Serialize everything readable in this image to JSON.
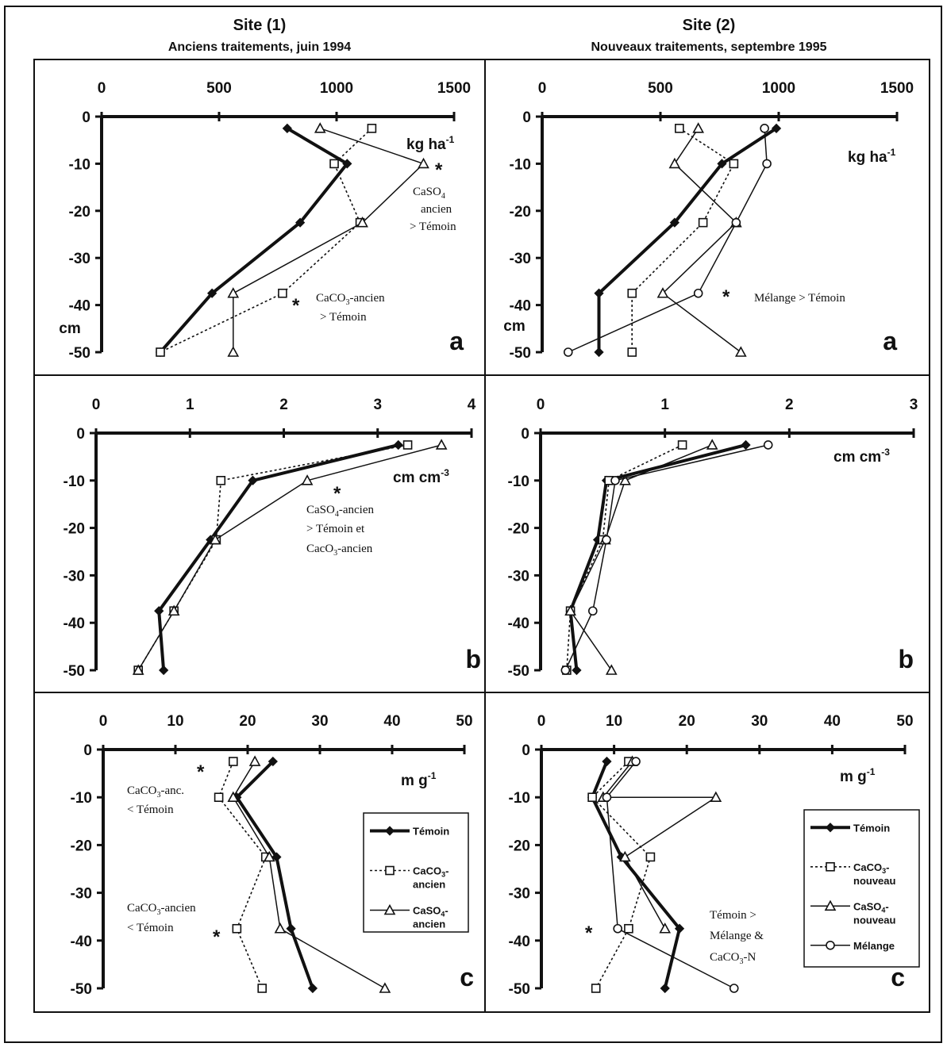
{
  "header": {
    "site1_title": "Site (1)",
    "site1_subtitle": "Anciens traitements, juin 1994",
    "site2_title": "Site (2)",
    "site2_subtitle": "Nouveaux traitements, septembre 1995"
  },
  "colors": {
    "ink": "#111111",
    "background": "#ffffff"
  },
  "chart_data": [
    {
      "id": "s1a",
      "type": "line",
      "panel_letter": "a",
      "unit": "kg ha-1",
      "ylabel": "cm",
      "xlim": [
        0,
        1500
      ],
      "xticks": [
        0,
        500,
        1000,
        1500
      ],
      "ylim": [
        -50,
        0
      ],
      "yticks": [
        0,
        -10,
        -20,
        -30,
        -40,
        -50
      ],
      "legend": null,
      "series": [
        {
          "name": "Témoin",
          "marker": "diamond",
          "style": "thick",
          "points": [
            [
              790,
              -2.5
            ],
            [
              1045,
              -10
            ],
            [
              845,
              -22.5
            ],
            [
              470,
              -37.5
            ],
            [
              250,
              -50
            ]
          ]
        },
        {
          "name": "CaCO3-ancien",
          "marker": "square",
          "style": "dotted",
          "points": [
            [
              1150,
              -2.5
            ],
            [
              990,
              -10
            ],
            [
              1100,
              -22.5
            ],
            [
              770,
              -37.5
            ],
            [
              250,
              -50
            ]
          ]
        },
        {
          "name": "CaSO4-ancien",
          "marker": "triangle",
          "style": "thin",
          "points": [
            [
              930,
              -2.5
            ],
            [
              1370,
              -10
            ],
            [
              1110,
              -22.5
            ],
            [
              560,
              -37.5
            ],
            [
              560,
              -50
            ]
          ]
        }
      ],
      "annotations": [
        {
          "star": true,
          "lines": [
            "CaSO4",
            "ancien",
            "> Témoin"
          ]
        },
        {
          "star": true,
          "lines": [
            "CaCO3-ancien",
            "> Témoin"
          ]
        }
      ]
    },
    {
      "id": "s2a",
      "type": "line",
      "panel_letter": "a",
      "unit": "kg ha-1",
      "ylabel": "cm",
      "xlim": [
        0,
        1500
      ],
      "xticks": [
        0,
        500,
        1000,
        1500
      ],
      "ylim": [
        -50,
        0
      ],
      "yticks": [
        0,
        -10,
        -20,
        -30,
        -40,
        -50
      ],
      "legend": null,
      "series": [
        {
          "name": "Témoin",
          "marker": "diamond",
          "style": "thick",
          "points": [
            [
              990,
              -2.5
            ],
            [
              760,
              -10
            ],
            [
              560,
              -22.5
            ],
            [
              240,
              -37.5
            ],
            [
              240,
              -50
            ]
          ]
        },
        {
          "name": "CaCO3-nouveau",
          "marker": "square",
          "style": "dotted",
          "points": [
            [
              580,
              -2.5
            ],
            [
              810,
              -10
            ],
            [
              680,
              -22.5
            ],
            [
              380,
              -37.5
            ],
            [
              380,
              -50
            ]
          ]
        },
        {
          "name": "CaSO4-nouveau",
          "marker": "triangle",
          "style": "thin",
          "points": [
            [
              660,
              -2.5
            ],
            [
              560,
              -10
            ],
            [
              820,
              -22.5
            ],
            [
              510,
              -37.5
            ],
            [
              840,
              -50
            ]
          ]
        },
        {
          "name": "Mélange",
          "marker": "circle",
          "style": "thin",
          "points": [
            [
              940,
              -2.5
            ],
            [
              950,
              -10
            ],
            [
              820,
              -22.5
            ],
            [
              660,
              -37.5
            ],
            [
              110,
              -50
            ]
          ]
        }
      ],
      "annotations": [
        {
          "star": true,
          "lines": [
            "Mélange > Témoin"
          ]
        }
      ]
    },
    {
      "id": "s1b",
      "type": "line",
      "panel_letter": "b",
      "unit": "cm cm-3",
      "ylabel": "",
      "xlim": [
        0,
        4
      ],
      "xticks": [
        0,
        1,
        2,
        3,
        4
      ],
      "ylim": [
        -50,
        0
      ],
      "yticks": [
        0,
        -10,
        -20,
        -30,
        -40,
        -50
      ],
      "legend": null,
      "series": [
        {
          "name": "Témoin",
          "marker": "diamond",
          "style": "thick",
          "points": [
            [
              3.22,
              -2.5
            ],
            [
              1.67,
              -10
            ],
            [
              1.22,
              -22.5
            ],
            [
              0.67,
              -37.5
            ],
            [
              0.72,
              -50
            ]
          ]
        },
        {
          "name": "CaCO3-ancien",
          "marker": "square",
          "style": "dotted",
          "points": [
            [
              3.32,
              -2.5
            ],
            [
              1.33,
              -10
            ],
            [
              1.28,
              -22.5
            ],
            [
              0.83,
              -37.5
            ],
            [
              0.45,
              -50
            ]
          ]
        },
        {
          "name": "CaSO4-ancien",
          "marker": "triangle",
          "style": "thin",
          "points": [
            [
              3.68,
              -2.5
            ],
            [
              2.25,
              -10
            ],
            [
              1.27,
              -22.5
            ],
            [
              0.83,
              -37.5
            ],
            [
              0.45,
              -50
            ]
          ]
        }
      ],
      "annotations": [
        {
          "star": true,
          "lines": [
            "CaSO4-ancien",
            "> Témoin et",
            "CacO3-ancien"
          ]
        }
      ]
    },
    {
      "id": "s2b",
      "type": "line",
      "panel_letter": "b",
      "unit": "cm cm-3",
      "ylabel": "",
      "xlim": [
        0,
        3
      ],
      "xticks": [
        0,
        1,
        2,
        3
      ],
      "ylim": [
        -50,
        0
      ],
      "yticks": [
        0,
        -10,
        -20,
        -30,
        -40,
        -50
      ],
      "legend": null,
      "series": [
        {
          "name": "Témoin",
          "marker": "diamond",
          "style": "thick",
          "points": [
            [
              1.65,
              -2.5
            ],
            [
              0.53,
              -10
            ],
            [
              0.46,
              -22.5
            ],
            [
              0.24,
              -37.5
            ],
            [
              0.29,
              -50
            ]
          ]
        },
        {
          "name": "CaCO3-nouveau",
          "marker": "square",
          "style": "dotted",
          "points": [
            [
              1.14,
              -2.5
            ],
            [
              0.55,
              -10
            ],
            [
              0.5,
              -22.5
            ],
            [
              0.24,
              -37.5
            ],
            [
              0.21,
              -50
            ]
          ]
        },
        {
          "name": "CaSO4-nouveau",
          "marker": "triangle",
          "style": "thin",
          "points": [
            [
              1.38,
              -2.5
            ],
            [
              0.68,
              -10
            ],
            [
              0.52,
              -22.5
            ],
            [
              0.24,
              -37.5
            ],
            [
              0.57,
              -50
            ]
          ]
        },
        {
          "name": "Mélange",
          "marker": "circle",
          "style": "thin",
          "points": [
            [
              1.83,
              -2.5
            ],
            [
              0.6,
              -10
            ],
            [
              0.53,
              -22.5
            ],
            [
              0.42,
              -37.5
            ],
            [
              0.2,
              -50
            ]
          ]
        }
      ],
      "annotations": []
    },
    {
      "id": "s1c",
      "type": "line",
      "panel_letter": "c",
      "unit": "m g-1",
      "ylabel": "",
      "xlim": [
        0,
        50
      ],
      "xticks": [
        0,
        10,
        20,
        30,
        40,
        50
      ],
      "ylim": [
        -50,
        0
      ],
      "yticks": [
        0,
        -10,
        -20,
        -30,
        -40,
        -50
      ],
      "legend": [
        "Témoin",
        "CaCO3-ancien",
        "CaSO4-ancien"
      ],
      "series": [
        {
          "name": "Témoin",
          "marker": "diamond",
          "style": "thick",
          "points": [
            [
              23.5,
              -2.5
            ],
            [
              18.5,
              -10
            ],
            [
              24,
              -22.5
            ],
            [
              26,
              -37.5
            ],
            [
              29,
              -50
            ]
          ]
        },
        {
          "name": "CaCO3-ancien",
          "marker": "square",
          "style": "dotted",
          "points": [
            [
              18,
              -2.5
            ],
            [
              16,
              -10
            ],
            [
              22.5,
              -22.5
            ],
            [
              18.5,
              -37.5
            ],
            [
              22,
              -50
            ]
          ]
        },
        {
          "name": "CaSO4-ancien",
          "marker": "triangle",
          "style": "thin",
          "points": [
            [
              21,
              -2.5
            ],
            [
              18,
              -10
            ],
            [
              23,
              -22.5
            ],
            [
              24.5,
              -37.5
            ],
            [
              39,
              -50
            ]
          ]
        }
      ],
      "annotations": [
        {
          "star": true,
          "lines": [
            "CaCO3-anc.",
            "< Témoin"
          ]
        },
        {
          "star": true,
          "lines": [
            "CaCO3-ancien",
            "< Témoin"
          ]
        }
      ]
    },
    {
      "id": "s2c",
      "type": "line",
      "panel_letter": "c",
      "unit": "m g-1",
      "ylabel": "",
      "xlim": [
        0,
        50
      ],
      "xticks": [
        0,
        10,
        20,
        30,
        40,
        50
      ],
      "ylim": [
        -50,
        0
      ],
      "yticks": [
        0,
        -10,
        -20,
        -30,
        -40,
        -50
      ],
      "legend": [
        "Témoin",
        "CaCO3-nouveau",
        "CaSO4-nouveau",
        "Mélange"
      ],
      "series": [
        {
          "name": "Témoin",
          "marker": "diamond",
          "style": "thick",
          "points": [
            [
              9,
              -2.5
            ],
            [
              7,
              -10
            ],
            [
              11,
              -22.5
            ],
            [
              19,
              -37.5
            ],
            [
              17,
              -50
            ]
          ]
        },
        {
          "name": "CaCO3-nouveau",
          "marker": "square",
          "style": "dotted",
          "points": [
            [
              12,
              -2.5
            ],
            [
              7,
              -10
            ],
            [
              15,
              -22.5
            ],
            [
              12,
              -37.5
            ],
            [
              7.5,
              -50
            ]
          ]
        },
        {
          "name": "CaSO4-nouveau",
          "marker": "triangle",
          "style": "thin",
          "points": [
            [
              12.5,
              -2.5
            ],
            [
              8.5,
              -10
            ],
            [
              24,
              -10
            ],
            [
              11.5,
              -22.5
            ],
            [
              17,
              -37.5
            ]
          ]
        },
        {
          "name": "Mélange",
          "marker": "circle",
          "style": "thin",
          "points": [
            [
              13,
              -2.5
            ],
            [
              9,
              -10
            ],
            [
              10.5,
              -37.5
            ],
            [
              26.5,
              -50
            ]
          ]
        }
      ],
      "annotations": [
        {
          "star": true,
          "lines": [
            "Témoin >",
            "Mélange &",
            "CaCO3-N"
          ]
        }
      ]
    }
  ]
}
